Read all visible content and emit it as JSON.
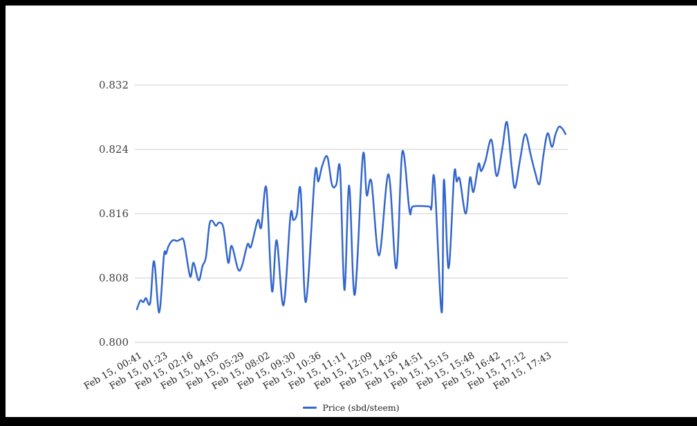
{
  "frame": {
    "border_color": "#000000",
    "background_color": "#ffffff"
  },
  "chart_data": {
    "type": "line",
    "title": "",
    "xlabel": "",
    "ylabel": "",
    "grid": true,
    "gridline_color": "#cccccc",
    "legend": {
      "position": "bottom",
      "label": "Price (sbd/steem)",
      "swatch_color": "#3366cc"
    },
    "y_axis": {
      "range": [
        0.8,
        0.832
      ],
      "ticks": [
        0.8,
        0.808,
        0.816,
        0.824,
        0.832
      ],
      "tick_labels": [
        "0.800",
        "0.808",
        "0.816",
        "0.824",
        "0.832"
      ]
    },
    "x_axis": {
      "slant_degrees": -30,
      "tick_labels": [
        "Feb 15, 00:41",
        "Feb 15, 01:23",
        "Feb 15, 02:16",
        "Feb 15, 04:05",
        "Feb 15, 05:29",
        "Feb 15, 08:02",
        "Feb 15, 09:30",
        "Feb 15, 10:36",
        "Feb 15, 11:11",
        "Feb 15, 12:09",
        "Feb 15, 14:26",
        "Feb 15, 14:51",
        "Feb 15, 15:15",
        "Feb 15, 15:48",
        "Feb 15, 16:42",
        "Feb 15, 17:12",
        "Feb 15, 17:43"
      ]
    },
    "series": [
      {
        "name": "Price (sbd/steem)",
        "color": "#3366cc",
        "points": [
          [
            0.0,
            0.8041
          ],
          [
            0.008,
            0.8052
          ],
          [
            0.015,
            0.805
          ],
          [
            0.021,
            0.8055
          ],
          [
            0.031,
            0.8049
          ],
          [
            0.04,
            0.8101
          ],
          [
            0.052,
            0.8037
          ],
          [
            0.063,
            0.8108
          ],
          [
            0.068,
            0.811
          ],
          [
            0.074,
            0.812
          ],
          [
            0.084,
            0.8127
          ],
          [
            0.094,
            0.8126
          ],
          [
            0.102,
            0.8128
          ],
          [
            0.11,
            0.8125
          ],
          [
            0.124,
            0.8082
          ],
          [
            0.132,
            0.8099
          ],
          [
            0.144,
            0.8077
          ],
          [
            0.153,
            0.8095
          ],
          [
            0.161,
            0.8106
          ],
          [
            0.169,
            0.8146
          ],
          [
            0.176,
            0.8151
          ],
          [
            0.184,
            0.8145
          ],
          [
            0.192,
            0.8149
          ],
          [
            0.202,
            0.8142
          ],
          [
            0.213,
            0.8099
          ],
          [
            0.221,
            0.812
          ],
          [
            0.236,
            0.8091
          ],
          [
            0.245,
            0.8095
          ],
          [
            0.258,
            0.8122
          ],
          [
            0.266,
            0.8119
          ],
          [
            0.282,
            0.8152
          ],
          [
            0.29,
            0.8143
          ],
          [
            0.302,
            0.8192
          ],
          [
            0.315,
            0.8064
          ],
          [
            0.326,
            0.8127
          ],
          [
            0.342,
            0.8046
          ],
          [
            0.358,
            0.8157
          ],
          [
            0.365,
            0.8152
          ],
          [
            0.373,
            0.8159
          ],
          [
            0.382,
            0.8189
          ],
          [
            0.394,
            0.805
          ],
          [
            0.415,
            0.8208
          ],
          [
            0.423,
            0.82
          ],
          [
            0.432,
            0.8219
          ],
          [
            0.444,
            0.8231
          ],
          [
            0.455,
            0.8196
          ],
          [
            0.465,
            0.8196
          ],
          [
            0.474,
            0.8215
          ],
          [
            0.484,
            0.8065
          ],
          [
            0.495,
            0.8195
          ],
          [
            0.508,
            0.8059
          ],
          [
            0.527,
            0.8232
          ],
          [
            0.536,
            0.8183
          ],
          [
            0.547,
            0.82
          ],
          [
            0.565,
            0.8108
          ],
          [
            0.587,
            0.8209
          ],
          [
            0.605,
            0.8092
          ],
          [
            0.619,
            0.8237
          ],
          [
            0.636,
            0.8163
          ],
          [
            0.644,
            0.8169
          ],
          [
            0.681,
            0.8169
          ],
          [
            0.687,
            0.8167
          ],
          [
            0.694,
            0.8203
          ],
          [
            0.711,
            0.8037
          ],
          [
            0.716,
            0.8202
          ],
          [
            0.727,
            0.8092
          ],
          [
            0.74,
            0.8209
          ],
          [
            0.746,
            0.82
          ],
          [
            0.753,
            0.8203
          ],
          [
            0.767,
            0.816
          ],
          [
            0.777,
            0.8205
          ],
          [
            0.785,
            0.8187
          ],
          [
            0.797,
            0.8222
          ],
          [
            0.803,
            0.8213
          ],
          [
            0.813,
            0.8226
          ],
          [
            0.827,
            0.8252
          ],
          [
            0.839,
            0.8207
          ],
          [
            0.852,
            0.824
          ],
          [
            0.863,
            0.8274
          ],
          [
            0.874,
            0.8219
          ],
          [
            0.882,
            0.8192
          ],
          [
            0.894,
            0.8228
          ],
          [
            0.906,
            0.8259
          ],
          [
            0.919,
            0.8232
          ],
          [
            0.929,
            0.8211
          ],
          [
            0.939,
            0.8197
          ],
          [
            0.948,
            0.8232
          ],
          [
            0.958,
            0.826
          ],
          [
            0.968,
            0.8243
          ],
          [
            0.976,
            0.8258
          ],
          [
            0.984,
            0.8268
          ],
          [
            0.992,
            0.8266
          ],
          [
            1.0,
            0.8259
          ]
        ]
      }
    ]
  }
}
